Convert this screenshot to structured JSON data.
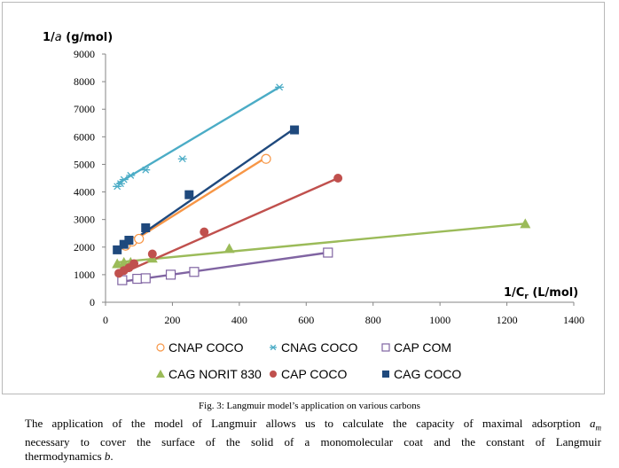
{
  "chart_data": {
    "type": "scatter",
    "title": "",
    "ylabel_prefix": "1/",
    "ylabel_var": "a",
    "ylabel_suffix": " (g/mol)",
    "xlabel_prefix": "1/C",
    "xlabel_sub": "r",
    "xlabel_suffix": " (L/mol)",
    "xlim": [
      0,
      1400
    ],
    "ylim": [
      0,
      9000
    ],
    "x_ticks": [
      0,
      200,
      400,
      600,
      800,
      1000,
      1200,
      1400
    ],
    "y_ticks": [
      0,
      1000,
      2000,
      3000,
      4000,
      5000,
      6000,
      7000,
      8000,
      9000
    ],
    "grid": false,
    "legend_position": "bottom",
    "series": [
      {
        "name": "CNAP COCO",
        "marker": "circle-open",
        "color": "#f79646",
        "points": [
          [
            60,
            2050
          ],
          [
            80,
            2200
          ],
          [
            100,
            2300
          ],
          [
            480,
            5200
          ]
        ],
        "fit": [
          [
            40,
            1900
          ],
          [
            480,
            5250
          ]
        ]
      },
      {
        "name": "CNAG COCO",
        "marker": "asterisk",
        "color": "#4bacc6",
        "points": [
          [
            35,
            4200
          ],
          [
            45,
            4300
          ],
          [
            55,
            4450
          ],
          [
            75,
            4600
          ],
          [
            120,
            4800
          ],
          [
            230,
            5200
          ],
          [
            520,
            7800
          ]
        ],
        "fit": [
          [
            35,
            4300
          ],
          [
            520,
            7800
          ]
        ]
      },
      {
        "name": "CAP COM",
        "marker": "square-open",
        "color": "#8064a2",
        "points": [
          [
            50,
            800
          ],
          [
            95,
            850
          ],
          [
            120,
            870
          ],
          [
            195,
            1000
          ],
          [
            265,
            1100
          ],
          [
            665,
            1800
          ]
        ],
        "fit": [
          [
            50,
            750
          ],
          [
            665,
            1800
          ]
        ]
      },
      {
        "name": "CAG NORIT 830",
        "marker": "triangle",
        "color": "#9bbb59",
        "points": [
          [
            35,
            1400
          ],
          [
            55,
            1450
          ],
          [
            75,
            1450
          ],
          [
            140,
            1600
          ],
          [
            370,
            1950
          ],
          [
            1255,
            2850
          ]
        ],
        "fit": [
          [
            35,
            1450
          ],
          [
            1255,
            2850
          ]
        ]
      },
      {
        "name": "CAP COCO",
        "marker": "circle",
        "color": "#c0504d",
        "points": [
          [
            40,
            1050
          ],
          [
            55,
            1150
          ],
          [
            70,
            1250
          ],
          [
            85,
            1400
          ],
          [
            140,
            1750
          ],
          [
            295,
            2550
          ],
          [
            695,
            4500
          ]
        ],
        "fit": [
          [
            40,
            1000
          ],
          [
            695,
            4500
          ]
        ]
      },
      {
        "name": "CAG COCO",
        "marker": "square",
        "color": "#1f497d",
        "points": [
          [
            35,
            1900
          ],
          [
            55,
            2100
          ],
          [
            70,
            2250
          ],
          [
            120,
            2700
          ],
          [
            250,
            3900
          ],
          [
            565,
            6250
          ]
        ],
        "fit": [
          [
            35,
            1850
          ],
          [
            565,
            6300
          ]
        ]
      }
    ]
  },
  "caption": "Fig. 3: Langmuir model’s application on various carbons",
  "body": {
    "line1_a": "The application of the model of Langmuir allows us to calculate the capacity of maximal adsorption ",
    "line1_var": "a",
    "line1_sub": "m",
    "line2": "necessary to cover the surface of the solid of a monomolecular coat and the constant of Langmuir",
    "line3_a": "thermodynamics ",
    "line3_var": "b",
    "line3_end": "."
  }
}
